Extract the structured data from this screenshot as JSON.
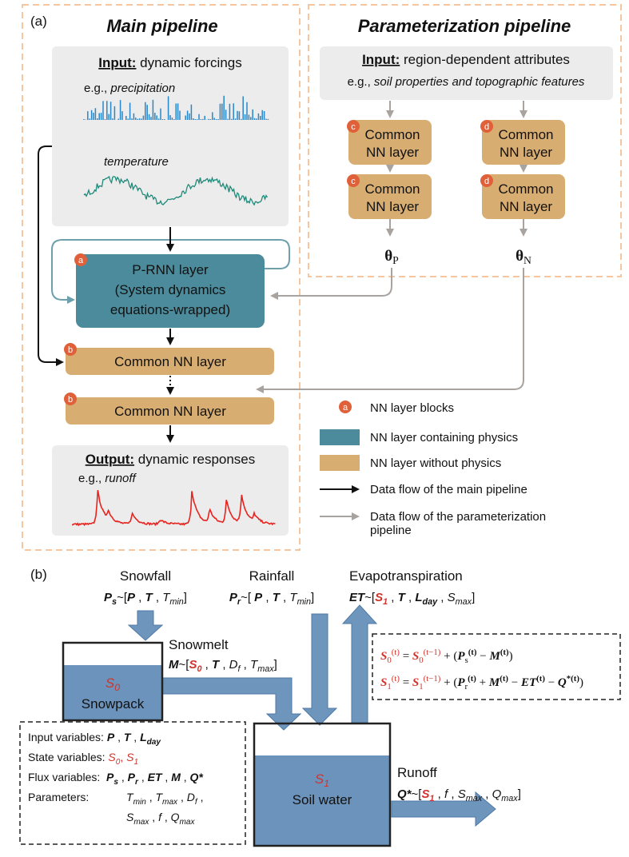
{
  "panel_a": {
    "label": "(a)",
    "main_title": "Main pipeline",
    "param_title": "Parameterization pipeline",
    "main_input": {
      "heading": [
        "Input:",
        " dynamic forcings"
      ],
      "example": [
        "e.g., ",
        "precipitation"
      ],
      "second": "temperature"
    },
    "param_input": {
      "heading": [
        "Input:",
        " region-dependent attributes"
      ],
      "example": [
        "e.g., ",
        "soil properties and topographic features"
      ]
    },
    "param_blocks": [
      {
        "badge": "c",
        "lines": [
          "Common",
          "NN layer"
        ]
      },
      {
        "badge": "c",
        "lines": [
          "Common",
          "NN layer"
        ]
      },
      {
        "badge": "d",
        "lines": [
          "Common",
          "NN layer"
        ]
      },
      {
        "badge": "d",
        "lines": [
          "Common",
          "NN layer"
        ]
      }
    ],
    "theta_p": [
      "θ",
      "P"
    ],
    "theta_n": [
      "θ",
      "N"
    ],
    "prnn": {
      "badge": "a",
      "lines": [
        "P-RNN layer",
        "(System dynamics",
        "equations-wrapped)"
      ]
    },
    "main_blocks": [
      {
        "badge": "b",
        "text": "Common NN layer"
      },
      {
        "badge": "b",
        "text": "Common NN layer"
      }
    ],
    "output": {
      "heading": [
        "Output:",
        " dynamic responses"
      ],
      "example": [
        "e.g., ",
        "runoff"
      ]
    },
    "legend": {
      "badge": "a",
      "items": [
        "NN layer blocks",
        "NN layer containing physics",
        "NN layer without physics",
        "Data flow of the main pipeline",
        "Data flow of the parameterization",
        "pipeline"
      ]
    }
  },
  "panel_b": {
    "label": "(b)",
    "snowfall": {
      "title": "Snowfall",
      "formula": [
        "P",
        "s",
        "~[",
        "P",
        " , ",
        "T",
        " , ",
        "T",
        "min",
        "]"
      ]
    },
    "rainfall": {
      "title": "Rainfall",
      "formula": [
        "P",
        "r",
        "~[ ",
        "P",
        " , ",
        "T",
        " , ",
        "T",
        "min",
        "]"
      ]
    },
    "evapotranspiration": {
      "title": "Evapotranspiration",
      "formula": [
        "ET",
        "~[",
        "S",
        "1",
        " , ",
        "T",
        " , ",
        "L",
        "day",
        " , ",
        "S",
        "max",
        "]"
      ]
    },
    "snowmelt": {
      "title": "Snowmelt",
      "formula": [
        "M",
        "~[",
        "S",
        "0",
        " , ",
        "T",
        " , ",
        "D",
        "f",
        " , ",
        "T",
        "max",
        "]"
      ]
    },
    "runoff": {
      "title": "Runoff",
      "formula": [
        "Q*",
        "~[",
        "S",
        "1",
        " , ",
        "f",
        " , ",
        "S",
        "max",
        " , ",
        "Q",
        "max",
        "]"
      ]
    },
    "snowpack": {
      "state": [
        "S",
        "0"
      ],
      "name": "Snowpack"
    },
    "soil": {
      "state": [
        "S",
        "1"
      ],
      "name": "Soil water"
    },
    "equations": [
      [
        "S",
        "0",
        "(t)",
        " = ",
        "S",
        "0",
        "(t−1)",
        " + (",
        "P",
        "s",
        "(t)",
        " − ",
        "M",
        "(t)",
        ")"
      ],
      [
        "S",
        "1",
        "(t)",
        " = ",
        "S",
        "1",
        "(t−1)",
        " + (",
        "P",
        "r",
        "(t)",
        " + ",
        "M",
        "(t)",
        " − ",
        "ET",
        "(t)",
        " − ",
        "Q",
        "*(t)",
        ")"
      ]
    ],
    "variables": {
      "input": [
        "Input variables: ",
        "P",
        " , ",
        "T",
        " , ",
        "L",
        "day"
      ],
      "state": [
        "State variables: ",
        "S",
        "0",
        ", ",
        "S",
        "1"
      ],
      "flux": [
        "Flux variables:  ",
        "P",
        "s",
        " , ",
        "P",
        "r",
        " , ",
        "ET",
        " , ",
        "M",
        " , ",
        "Q*"
      ],
      "parameters_label": "Parameters:",
      "parameters_1": [
        "T",
        "min",
        " , ",
        "T",
        "max",
        " , ",
        "D",
        "f",
        " ,"
      ],
      "parameters_2": [
        "S",
        "max",
        " , ",
        "f",
        " , ",
        "Q",
        "max"
      ]
    }
  }
}
